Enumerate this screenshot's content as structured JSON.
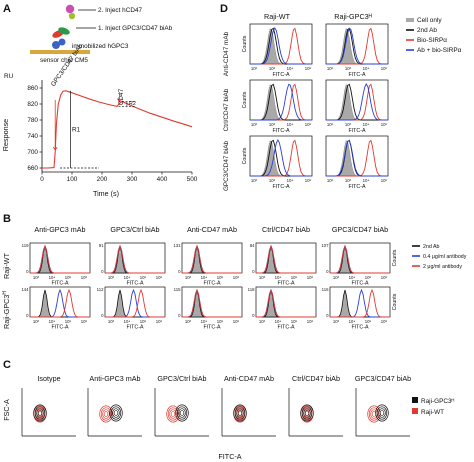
{
  "panels": {
    "a": "A",
    "b": "B",
    "c": "C",
    "d": "D"
  },
  "colors": {
    "black": "#111111",
    "blue": "#2b3fd6",
    "red": "#e03a2f",
    "gray": "#a9a9a9",
    "purple": "#8a2bb0"
  },
  "panel_a": {
    "schematic": {
      "step2": "2. Inject hCD47",
      "step1": "1. Inject GPC3/CD47 biAb",
      "immobilized": "immobilized hGPC3",
      "chip": "sensor chip CM5"
    },
    "chart_data": {
      "type": "line",
      "xlabel": "Time (s)",
      "ylabel": "Response",
      "unit_label": "RU",
      "xlim": [
        0,
        500
      ],
      "ylim": [
        650,
        880
      ],
      "xticks": [
        "0",
        "100",
        "200",
        "300",
        "400",
        "500"
      ],
      "yticks": [
        "660",
        "700",
        "740",
        "780",
        "820",
        "860"
      ],
      "annotations": {
        "biab": "GPC3/CD47 biAb",
        "cd47": "CD47",
        "r1": "R1",
        "r2": "R2"
      },
      "series": [
        {
          "x": [
            0,
            20,
            40,
            44,
            48,
            54,
            62,
            70,
            80,
            100,
            130,
            160,
            190,
            220,
            250,
            255,
            262,
            268,
            280,
            300,
            330,
            360,
            400,
            440,
            480,
            500
          ],
          "values": [
            660,
            660,
            661,
            700,
            770,
            818,
            842,
            852,
            853,
            848,
            840,
            832,
            825,
            819,
            814,
            819,
            824,
            826,
            822,
            815,
            806,
            797,
            787,
            777,
            768,
            763
          ]
        }
      ]
    }
  },
  "panel_b": {
    "column_titles": [
      "Anti-GPC3 mAb",
      "GPC3/Ctrl biAb",
      "Anti-CD47 mAb",
      "Ctrl/CD47 biAb",
      "GPC3/CD47 biAb"
    ],
    "row_labels": [
      "Raji-WT",
      "Raji-GPC3ᴴ"
    ],
    "row_label_wt": "Raji-WT",
    "row_label_gpc3": "Raji-GPC3",
    "row_label_sup": "H",
    "xlabel": "FITC-A",
    "ylabel": "Counts",
    "legend": [
      "2nd Ab",
      "0.4 μg/ml antibody",
      "2 μg/ml antibody"
    ],
    "ymax_row1": [
      "119",
      "91",
      "131",
      "84",
      "107"
    ],
    "ymax_row2": [
      "144",
      "112",
      "115",
      "118",
      "116"
    ],
    "xticks": [
      "10³",
      "10⁴",
      "10⁵",
      "10⁶"
    ],
    "chart_data": {
      "type": "area",
      "x_scale": "log",
      "xlabel": "FITC-A",
      "ylabel": "Counts",
      "note": "histogram peak positions (log10 FITC-A) per condition",
      "row1": [
        [
          3.0,
          3.0,
          3.0
        ],
        [
          3.0,
          3.0,
          3.0
        ],
        [
          3.0,
          3.0,
          3.0
        ],
        [
          3.0,
          3.0,
          3.0
        ],
        [
          3.0,
          3.0,
          3.0
        ]
      ],
      "row2": [
        [
          3.0,
          4.0,
          4.6
        ],
        [
          3.0,
          3.9,
          4.4
        ],
        [
          3.0,
          3.0,
          3.0
        ],
        [
          3.0,
          3.0,
          3.0
        ],
        [
          3.0,
          4.1,
          4.8
        ]
      ]
    }
  },
  "panel_c": {
    "titles": [
      "Isotype",
      "Anti-GPC3 mAb",
      "GPC3/Ctrl biAb",
      "Anti-CD47 mAb",
      "Ctrl/CD47 biAb",
      "GPC3/CD47 biAb"
    ],
    "ylabel": "FSC-A",
    "xlabel": "FITC-A",
    "legend": [
      "Raji-GPC3ᴴ",
      "Raji-WT"
    ]
  },
  "panel_d": {
    "column_titles": [
      "Raji-WT",
      "Raji-GPC3ᴴ"
    ],
    "row_labels": [
      "Anti-CD47 mAb",
      "Ctrl/CD47 biAb",
      "GPC3/CD47 biAb"
    ],
    "xlabel": "FITC-A",
    "ylabel": "Counts",
    "xticks": [
      "10²",
      "10³",
      "10⁴",
      "10⁵"
    ],
    "legend": [
      "Cell only",
      "2nd Ab",
      "Bio-SIRPα",
      "Ab + bio-SIRPα"
    ]
  }
}
